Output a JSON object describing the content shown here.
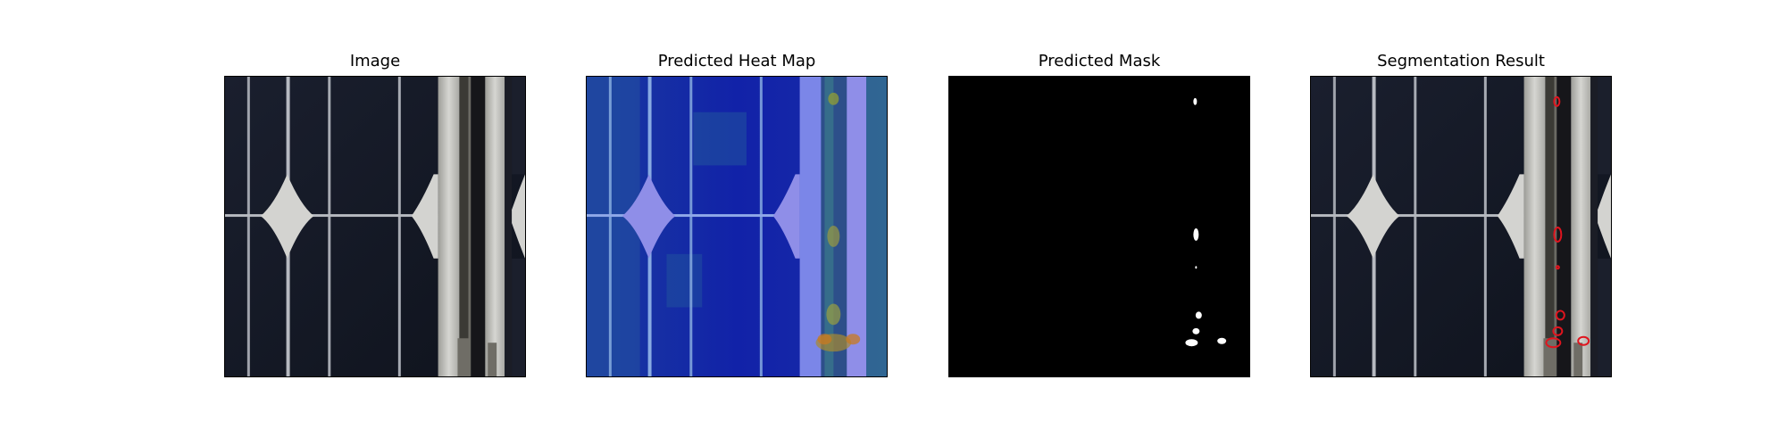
{
  "figure": {
    "panels": [
      {
        "title": "Image",
        "kind": "photo"
      },
      {
        "title": "Predicted Heat Map",
        "kind": "heatmap",
        "colormap": "jet"
      },
      {
        "title": "Predicted Mask",
        "kind": "mask"
      },
      {
        "title": "Segmentation Result",
        "kind": "overlay",
        "contour_color": "#e0141e"
      }
    ]
  }
}
